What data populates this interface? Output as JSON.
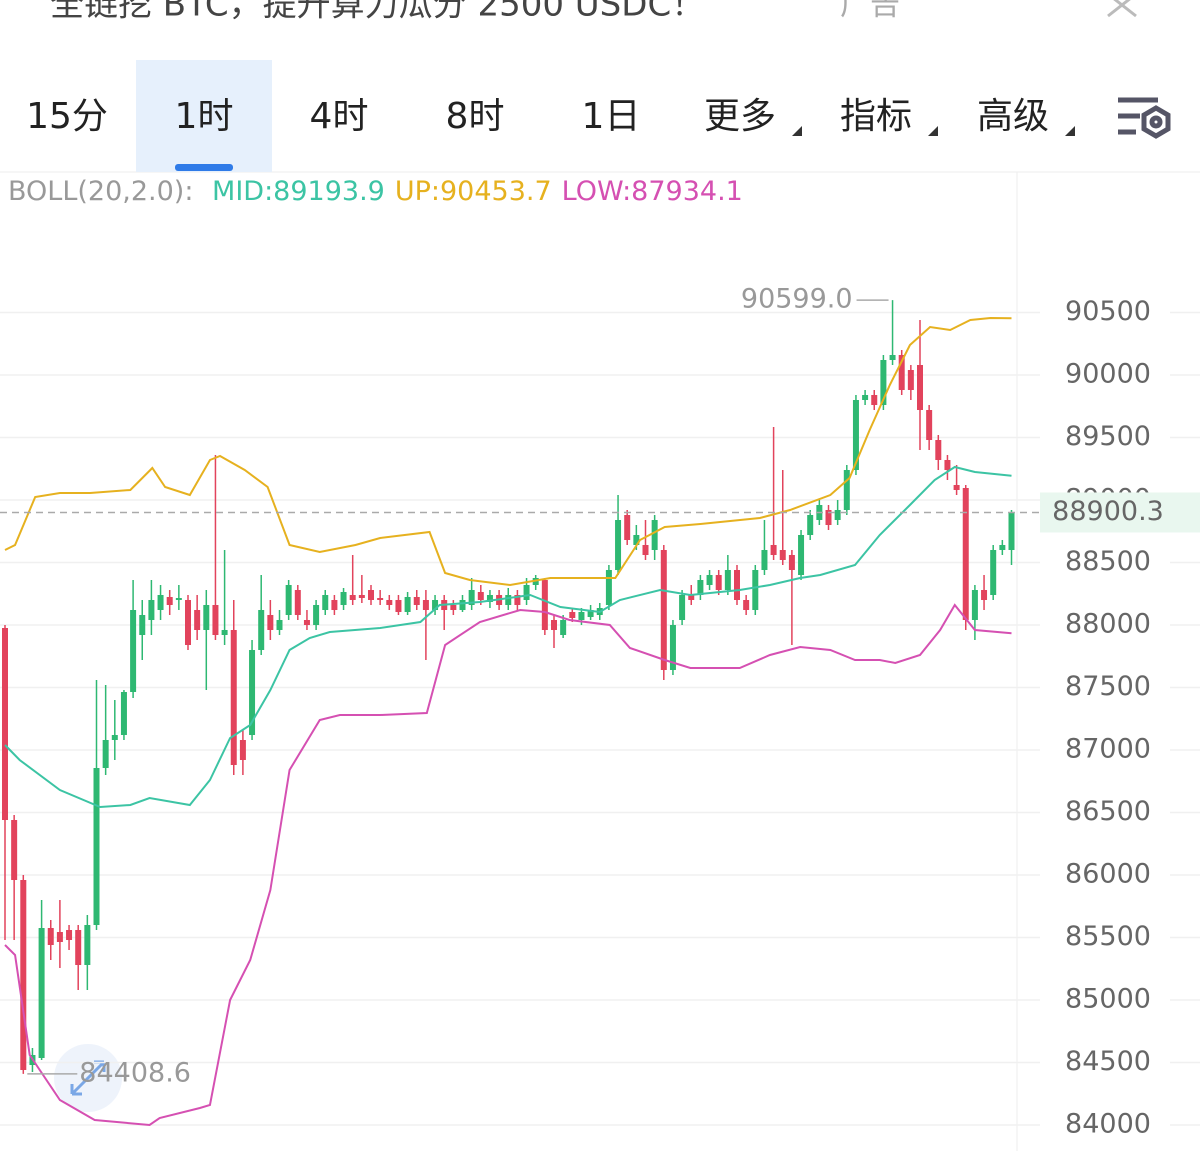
{
  "header": {
    "title": "全链挖 BTC，提升算力瓜分 2500 USDC！",
    "ad": "广告"
  },
  "tabs": [
    "15分",
    "1时",
    "4时",
    "8时",
    "1日",
    "更多",
    "指标",
    "高级"
  ],
  "selected_tab": 1,
  "chart_data": {
    "type": "candlestick",
    "indicator": "BOLL(20,2.0):",
    "up_color": "#2eb872",
    "down_color": "#e2435c",
    "open": [
      87976,
      86440,
      85960,
      84480,
      84536,
      85576,
      85544,
      85560,
      85560,
      85280,
      85600,
      86856,
      87080,
      87120,
      87464,
      87920,
      88040,
      88120,
      88224,
      88200,
      88200,
      88120,
      87960,
      88160,
      87920,
      87960,
      87080,
      87120,
      87800,
      88080,
      87960,
      88080,
      88280,
      88040,
      88000,
      88120,
      88200,
      88160,
      88240,
      88240,
      88280,
      88216,
      88200,
      88200,
      88104,
      88224,
      88200,
      88120,
      88200,
      88160,
      88120,
      88160,
      88264,
      88184,
      88240,
      88160,
      88240,
      88200,
      88320,
      88360,
      88040,
      87920,
      88104,
      88040,
      88064,
      88080,
      88160,
      88440,
      88880,
      88640,
      88640,
      88600,
      88600,
      87640,
      88040,
      88240,
      88240,
      88320,
      88400,
      88280,
      88440,
      88200,
      88120,
      88440,
      88640,
      88600,
      88560,
      88400,
      88720,
      88840,
      88920,
      88840,
      88920,
      89240,
      89800,
      89840,
      89760,
      90120,
      90160,
      90040,
      90080,
      89720,
      89480,
      89320,
      89120,
      89096,
      88040,
      88280,
      88240,
      88600,
      88600
    ],
    "high": [
      88000,
      86480,
      86000,
      84616,
      85800,
      85640,
      85800,
      85600,
      85600,
      85680,
      87560,
      87520,
      87400,
      87480,
      88360,
      88200,
      88360,
      88320,
      88280,
      88320,
      88240,
      88240,
      88280,
      89360,
      88600,
      88200,
      87160,
      87880,
      88400,
      88200,
      88120,
      88360,
      88320,
      88120,
      88200,
      88280,
      88240,
      88296,
      88560,
      88400,
      88320,
      88280,
      88240,
      88240,
      88264,
      88280,
      88280,
      88240,
      88240,
      88200,
      88240,
      88376,
      88320,
      88280,
      88280,
      88296,
      88280,
      88376,
      88400,
      88376,
      88080,
      88080,
      88136,
      88136,
      88160,
      88176,
      88480,
      89040,
      88920,
      88800,
      88840,
      88880,
      88640,
      88040,
      88280,
      88320,
      88400,
      88440,
      88440,
      88560,
      88480,
      88240,
      88480,
      88840,
      89584,
      89240,
      88600,
      88760,
      88920,
      89000,
      88960,
      89000,
      89280,
      89840,
      89880,
      89880,
      90160,
      90599,
      90200,
      90080,
      90440,
      89760,
      89520,
      89360,
      89280,
      89120,
      88320,
      88400,
      88640,
      88680,
      88920
    ],
    "low": [
      85480,
      85480,
      84408.6,
      84424,
      84520,
      85320,
      85256,
      85400,
      85080,
      85080,
      85560,
      86800,
      86920,
      87080,
      87416,
      87720,
      87920,
      88040,
      88080,
      88120,
      87800,
      87880,
      87480,
      87880,
      87840,
      86800,
      86800,
      87080,
      87760,
      87880,
      87920,
      88040,
      88040,
      87960,
      87960,
      88080,
      88080,
      88120,
      88160,
      88176,
      88160,
      88160,
      88120,
      88080,
      88080,
      88120,
      87720,
      88080,
      87960,
      88080,
      88104,
      88120,
      88160,
      88136,
      88120,
      88120,
      88120,
      88160,
      88280,
      87920,
      87816,
      87896,
      88024,
      88000,
      88040,
      88040,
      88120,
      88400,
      88640,
      88600,
      88520,
      88520,
      87560,
      87600,
      88000,
      88160,
      88200,
      88280,
      88240,
      88240,
      88160,
      88080,
      88080,
      88400,
      88520,
      88480,
      87840,
      88360,
      88680,
      88800,
      88760,
      88800,
      88880,
      89200,
      89760,
      89720,
      89720,
      90080,
      89840,
      89800,
      89400,
      89400,
      89240,
      89160,
      89040,
      87960,
      87880,
      88120,
      88200,
      88560,
      88480
    ],
    "close": [
      86440,
      85960,
      84440,
      84560,
      85576,
      85440,
      85464,
      85480,
      85280,
      85600,
      86856,
      87080,
      87120,
      87464,
      88120,
      88080,
      88200,
      88240,
      88160,
      88216,
      87840,
      87960,
      88160,
      87920,
      87960,
      86880,
      86920,
      87800,
      88120,
      87960,
      88040,
      88320,
      88080,
      88000,
      88160,
      88240,
      88120,
      88264,
      88200,
      88216,
      88200,
      88200,
      88160,
      88104,
      88224,
      88160,
      88120,
      88200,
      88120,
      88120,
      88200,
      88280,
      88200,
      88240,
      88160,
      88240,
      88160,
      88320,
      88376,
      87960,
      87960,
      88040,
      88056,
      88104,
      88120,
      88136,
      88440,
      88840,
      88680,
      88720,
      88560,
      88840,
      87640,
      88000,
      88240,
      88200,
      88360,
      88400,
      88280,
      88440,
      88200,
      88120,
      88440,
      88600,
      88560,
      88520,
      88440,
      88720,
      88880,
      88960,
      88800,
      88920,
      89240,
      89800,
      89840,
      89760,
      90120,
      90160,
      89880,
      89880,
      89720,
      89480,
      89320,
      89240,
      89080,
      88040,
      88280,
      88200,
      88600,
      88640,
      88900.3
    ],
    "series": [
      {
        "legend": "MID:89193.9",
        "color": "#3cc4a4",
        "x": [
          0,
          1.6,
          6,
          10.4,
          13.7,
          15.8,
          20.2,
          22.4,
          24.6,
          26.8,
          29,
          31.1,
          33.3,
          35.5,
          41,
          45.4,
          47.5,
          51.9,
          57.4,
          60.7,
          65,
          67.2,
          71.6,
          74.9,
          80.3,
          83.6,
          86.9,
          89.1,
          92.9,
          95.6,
          98.9,
          101.6,
          103.8,
          106,
          110
        ],
        "values": [
          87040,
          86920,
          86680,
          86544,
          86560,
          86616,
          86560,
          86760,
          87096,
          87200,
          87480,
          87800,
          87896,
          87944,
          87976,
          88024,
          88160,
          88184,
          88240,
          88144,
          88104,
          88200,
          88280,
          88240,
          88280,
          88320,
          88376,
          88400,
          88480,
          88720,
          88960,
          89160,
          89264,
          89224,
          89193.9
        ]
      },
      {
        "legend": "UP:90453.7",
        "color": "#e6b11f",
        "x": [
          0,
          1.1,
          3.3,
          6,
          9.3,
          13.7,
          16.1,
          17.5,
          20.2,
          22.4,
          23.5,
          26.2,
          28.7,
          31.1,
          34.4,
          38.3,
          41,
          46.4,
          48.1,
          50.8,
          55.2,
          59.6,
          66.7,
          69.4,
          72.1,
          76,
          82.5,
          85.8,
          90.2,
          92.3,
          94.5,
          96.7,
          98.9,
          101.1,
          103.3,
          105.5,
          107.7,
          110
        ],
        "values": [
          88600,
          88640,
          89024,
          89056,
          89056,
          89080,
          89256,
          89104,
          89040,
          89320,
          89352,
          89240,
          89104,
          88640,
          88584,
          88640,
          88696,
          88744,
          88416,
          88360,
          88320,
          88376,
          88376,
          88680,
          88784,
          88808,
          88856,
          88920,
          89040,
          89176,
          89560,
          89920,
          90240,
          90384,
          90360,
          90440,
          90456,
          90453.7
        ]
      },
      {
        "legend": "LOW:87934.1",
        "color": "#d550b2",
        "x": [
          0,
          1.1,
          2.7,
          6,
          9.8,
          15.8,
          16.9,
          21.3,
          22.4,
          24.6,
          26.8,
          29,
          31.1,
          34.4,
          36.6,
          41,
          46.1,
          48.1,
          51.9,
          56.3,
          59,
          61.7,
          66.1,
          68.3,
          72.1,
          74.9,
          80.3,
          83.6,
          86.9,
          90.2,
          92.9,
          95.6,
          97.3,
          100,
          102.2,
          103.8,
          106,
          110
        ],
        "values": [
          85440,
          85360,
          84560,
          84200,
          84040,
          84000,
          84056,
          84136,
          84160,
          85000,
          85320,
          85880,
          86840,
          87240,
          87280,
          87280,
          87296,
          87840,
          88024,
          88120,
          88104,
          88040,
          88000,
          87816,
          87720,
          87656,
          87656,
          87760,
          87824,
          87800,
          87720,
          87720,
          87696,
          87760,
          87960,
          88160,
          87960,
          87934.1
        ]
      }
    ],
    "ylim": [
      83800,
      91640
    ],
    "yticks": [
      84000,
      84500,
      85000,
      85500,
      86000,
      86500,
      87000,
      87500,
      88000,
      88500,
      89000,
      89500,
      90000,
      90500
    ],
    "grid": true,
    "last_price": 88900.3,
    "max_label": "90599.0",
    "min_label": "84408.6"
  }
}
